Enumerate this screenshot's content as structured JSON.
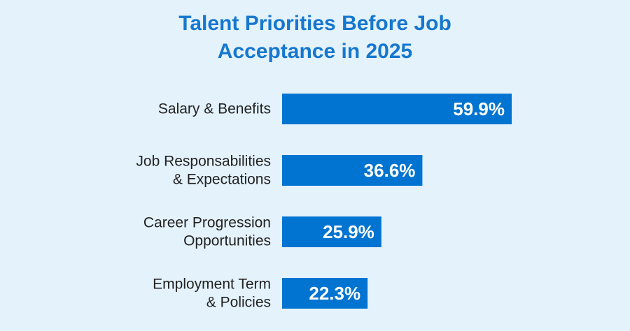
{
  "chart_data": {
    "type": "bar",
    "orientation": "horizontal",
    "title_lines": [
      "Talent Priorities Before Job",
      "Acceptance in 2025"
    ],
    "categories": [
      [
        "Salary & Benefits"
      ],
      [
        "Job Responsabilities",
        "& Expectations"
      ],
      [
        "Career Progression",
        "Opportunities"
      ],
      [
        "Employment Term",
        "& Policies"
      ]
    ],
    "values": [
      59.9,
      36.6,
      25.9,
      22.3
    ],
    "value_labels": [
      "59.9%",
      "36.6%",
      "25.9%",
      "22.3%"
    ],
    "unit": "%",
    "xlim": [
      0,
      59.9
    ],
    "grid": false,
    "legend": "none",
    "bar_color": "#0074d0",
    "title_color": "#1577cf",
    "background_color": "#e4f2fc"
  }
}
